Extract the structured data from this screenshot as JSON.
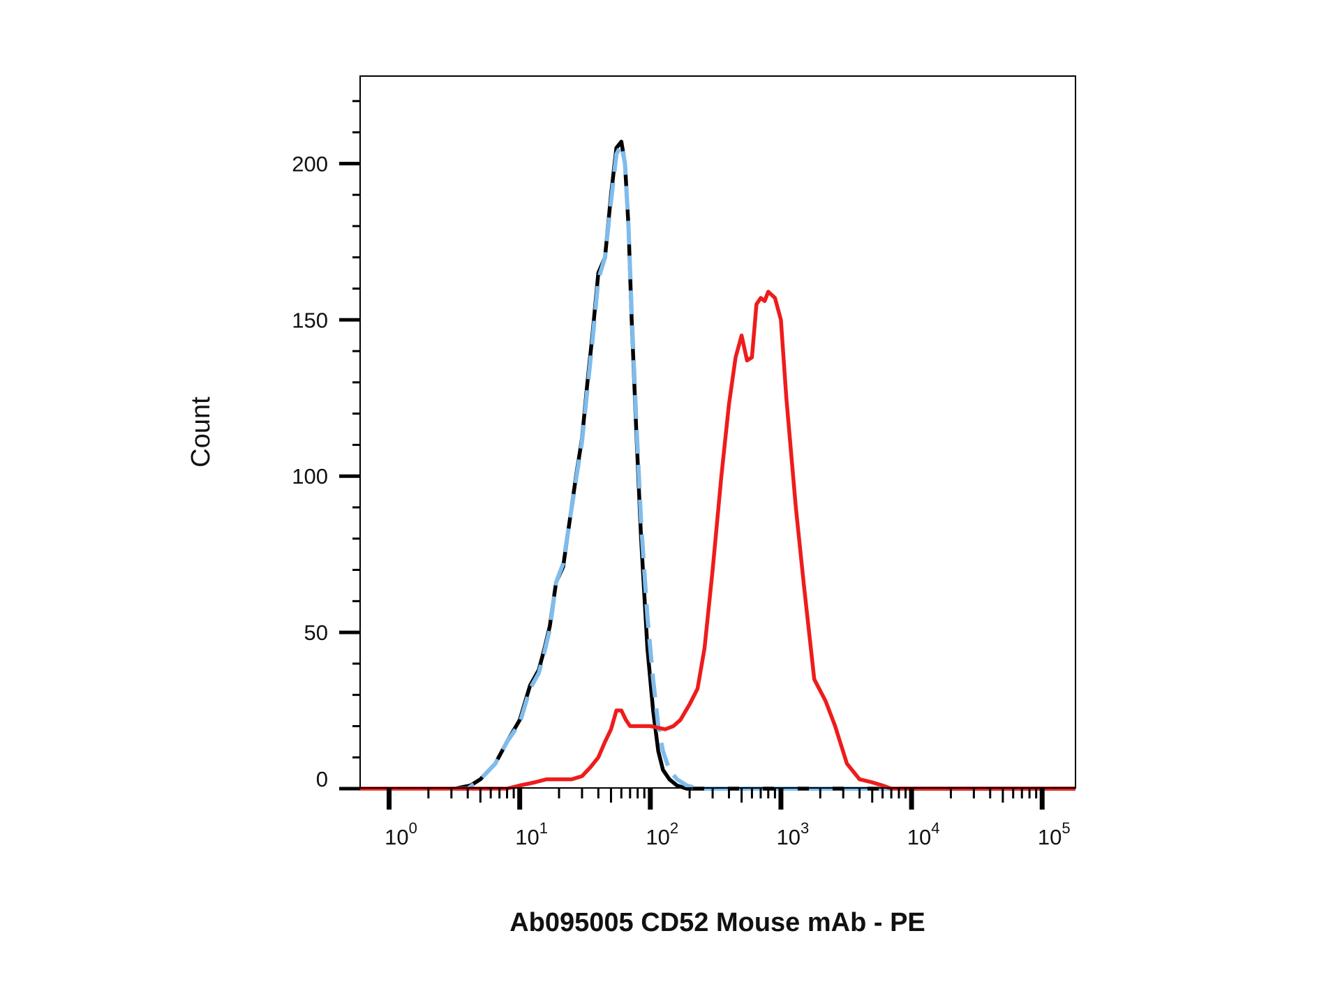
{
  "chart_data": {
    "type": "line",
    "title": "",
    "xlabel": "Ab095005 CD52 Mouse mAb - PE",
    "ylabel": "Count",
    "x_scale": "log",
    "xlim": [
      0.6,
      180000
    ],
    "ylim": [
      0,
      228
    ],
    "grid": false,
    "legend": "none",
    "x_tick_labels": [
      {
        "value": 1,
        "base": "10",
        "exp": "0"
      },
      {
        "value": 10,
        "base": "10",
        "exp": "1"
      },
      {
        "value": 100,
        "base": "10",
        "exp": "2"
      },
      {
        "value": 1000,
        "base": "10",
        "exp": "3"
      },
      {
        "value": 10000,
        "base": "10",
        "exp": "4"
      },
      {
        "value": 100000,
        "base": "10",
        "exp": "5"
      }
    ],
    "y_ticks": [
      0,
      50,
      100,
      150,
      200
    ],
    "y_tick_labels": [
      "0",
      "50",
      "100",
      "150",
      "200"
    ],
    "series": [
      {
        "color": "#000000",
        "style": "solid",
        "x": [
          3.2,
          4.2,
          5.0,
          6.5,
          8.0,
          10.0,
          12.0,
          14.0,
          15.5,
          17.0,
          19.0,
          21.5,
          24.0,
          27.0,
          30.0,
          33.0,
          36.0,
          40.0,
          45.0,
          50.0,
          55.0,
          60.0,
          64.0,
          68.0,
          72.0,
          78.0,
          85.0,
          95.0,
          105.0,
          115.0,
          125.0,
          140.0,
          160.0,
          190.0,
          230.0,
          300.0,
          400.0,
          1000.0,
          10000.0,
          180000.0
        ],
        "y": [
          0,
          1,
          3,
          8,
          15,
          22,
          33,
          38,
          45,
          52,
          66,
          71,
          85,
          100,
          112,
          130,
          145,
          165,
          170,
          190,
          205,
          207,
          200,
          180,
          150,
          115,
          80,
          45,
          25,
          12,
          6,
          3,
          1,
          0,
          0,
          0,
          0,
          0,
          0,
          0
        ]
      },
      {
        "color": "#7fbcec",
        "style": "dashed",
        "x": [
          3.0,
          4.0,
          5.0,
          6.5,
          8.0,
          10.0,
          12.0,
          14.0,
          15.5,
          17.0,
          19.0,
          21.5,
          24.0,
          27.0,
          30.0,
          33.0,
          36.0,
          40.0,
          45.0,
          50.0,
          55.0,
          60.0,
          64.0,
          68.0,
          72.0,
          78.0,
          85.0,
          95.0,
          105.0,
          115.0,
          125.0,
          140.0,
          160.0,
          190.0,
          230.0,
          300.0,
          500.0,
          1000.0,
          3000.0,
          8000.0
        ],
        "y": [
          0,
          0,
          3,
          8,
          15,
          21,
          32,
          37,
          44,
          51,
          66,
          72,
          85,
          99,
          111,
          128,
          143,
          163,
          170,
          188,
          203,
          206,
          200,
          180,
          152,
          118,
          85,
          55,
          35,
          20,
          12,
          6,
          3,
          1,
          0,
          0,
          0,
          0,
          0,
          0
        ]
      },
      {
        "color": "#ee1c1c",
        "style": "solid",
        "x": [
          0.6,
          5.0,
          8.0,
          10.0,
          13.0,
          16.0,
          19.0,
          25.0,
          30.0,
          35.0,
          40.0,
          45.0,
          50.0,
          55.0,
          60.0,
          65.0,
          70.0,
          80.0,
          100.0,
          130.0,
          150.0,
          170.0,
          200.0,
          230.0,
          260.0,
          300.0,
          350.0,
          400.0,
          450.0,
          500.0,
          550.0,
          600.0,
          650.0,
          700.0,
          750.0,
          800.0,
          900.0,
          1000.0,
          1100.0,
          1300.0,
          1500.0,
          1800.0,
          2200.0,
          2600.0,
          3200.0,
          4000.0,
          5000.0,
          6000.0,
          7000.0,
          8000.0,
          10000.0,
          180000.0
        ],
        "y": [
          0,
          0,
          0,
          1,
          2,
          3,
          3,
          3,
          4,
          7,
          10,
          15,
          19,
          25,
          25,
          22,
          20,
          20,
          20,
          19,
          20,
          22,
          27,
          32,
          45,
          70,
          100,
          123,
          138,
          145,
          137,
          138,
          155,
          157,
          156,
          159,
          157,
          150,
          125,
          90,
          65,
          35,
          28,
          20,
          8,
          3,
          2,
          1,
          0,
          0,
          0,
          0
        ]
      }
    ]
  }
}
